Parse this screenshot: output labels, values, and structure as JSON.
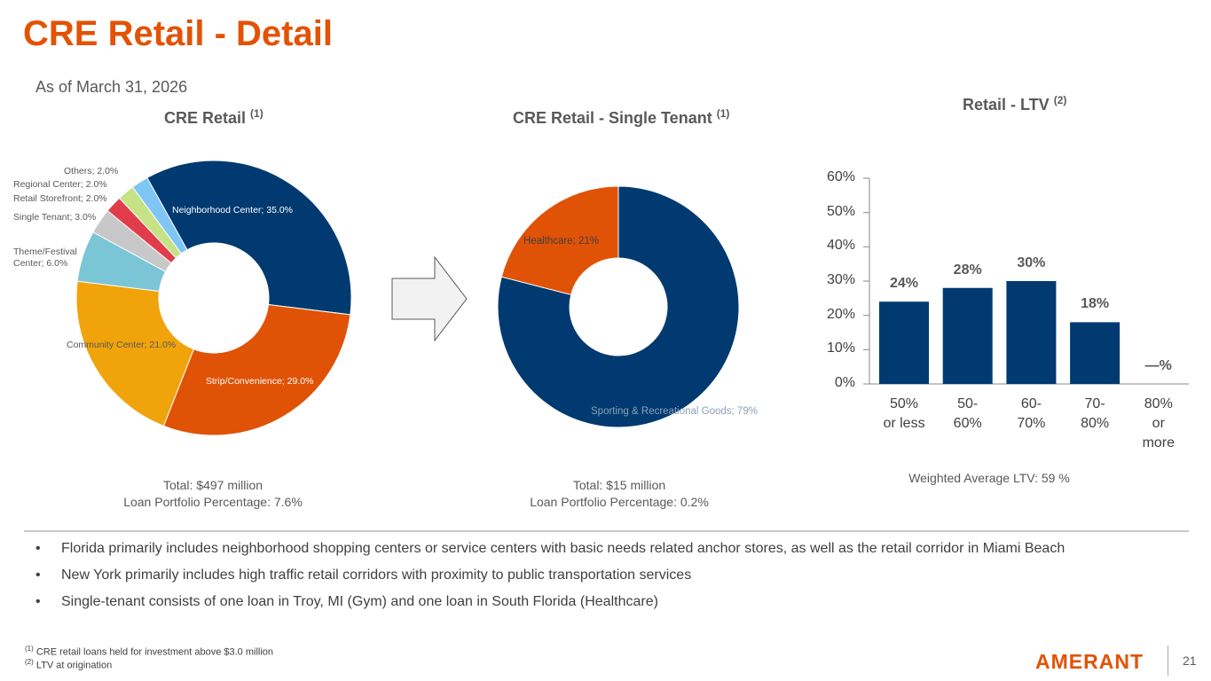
{
  "title": "CRE Retail - Detail",
  "as_of": "As of March 31, 2026",
  "chart_data": [
    {
      "type": "pie",
      "title": "CRE Retail",
      "title_note": "(1)",
      "donut": true,
      "categories": [
        "Neighborhood Center",
        "Strip/Convenience",
        "Community Center",
        "Theme/Festival Center",
        "Single Tenant",
        "Retail Storefront",
        "Regional Center",
        "Others"
      ],
      "values": [
        35.0,
        29.0,
        21.0,
        6.0,
        3.0,
        2.0,
        2.0,
        2.0
      ],
      "labels": [
        "Neighborhood Center; 35.0%",
        "Strip/Convenience; 29.0%",
        "Community Center; 21.0%",
        "Theme/Festival Center; 6.0%",
        "Single Tenant; 3.0%",
        "Retail Storefront; 2.0%",
        "Regional Center; 2.0%",
        "Others; 2.0%"
      ],
      "colors": [
        "#003a70",
        "#e05206",
        "#f0a30a",
        "#7ac5d6",
        "#c8c8c8",
        "#e03c4b",
        "#c5e384",
        "#7fc6f5"
      ],
      "total": "Total: $497  million",
      "portfolio": "Loan Portfolio Percentage: 7.6%"
    },
    {
      "type": "pie",
      "title": "CRE Retail - Single Tenant",
      "title_note": "(1)",
      "donut": true,
      "categories": [
        "Sporting & Recreational Goods",
        "Healthcare"
      ],
      "values": [
        79,
        21
      ],
      "labels": [
        "Sporting & Recreational Goods; 79%",
        "Healthcare; 21%"
      ],
      "colors": [
        "#003a70",
        "#e05206"
      ],
      "total": "Total:  $15 million",
      "portfolio": "Loan Portfolio Percentage: 0.2%"
    },
    {
      "type": "bar",
      "title": "Retail - LTV",
      "title_note": "(2)",
      "categories": [
        "50% or less",
        "50-60%",
        "60-70%",
        "70-80%",
        "80% or more"
      ],
      "x_tick_lines": [
        [
          "50%",
          "or less"
        ],
        [
          "50-",
          "60%"
        ],
        [
          "60-",
          "70%"
        ],
        [
          "70-",
          "80%"
        ],
        [
          "80%",
          "or",
          "more"
        ]
      ],
      "values": [
        24,
        28,
        30,
        18,
        0
      ],
      "data_labels": [
        "24%",
        "28%",
        "30%",
        "18%",
        "—%"
      ],
      "ylim": [
        0,
        60
      ],
      "yticks": [
        "0%",
        "10%",
        "20%",
        "30%",
        "40%",
        "50%",
        "60%"
      ],
      "color": "#003a70",
      "note": "Weighted Average LTV:  59 %"
    }
  ],
  "bullets": [
    "Florida primarily includes neighborhood shopping centers or service centers with basic needs related anchor stores, as well as the retail corridor in Miami Beach",
    "New York primarily includes high traffic retail corridors with proximity to public transportation services",
    "Single-tenant consists of one loan  in Troy, MI (Gym) and one loan in South Florida (Healthcare)"
  ],
  "bullet_char": "•",
  "footnotes": [
    {
      "mark": "(1)",
      "text": " CRE retail loans held for investment above $3.0 million"
    },
    {
      "mark": "(2)",
      "text": " LTV at origination"
    }
  ],
  "logo": "AMERANT",
  "page_number": "21"
}
